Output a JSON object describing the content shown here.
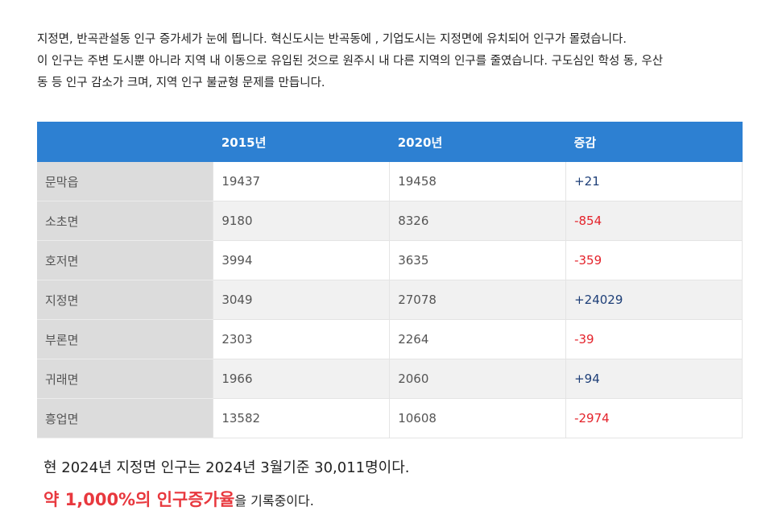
{
  "intro": [
    "지정면, 반곡관설동 인구 증가세가 눈에 띕니다. 혁신도시는 반곡동에 , 기업도시는 지정면에 유치되어 인구가 몰렸습니다.",
    "이 인구는 주변 도시뿐 아니라 지역 내 이동으로 유입된 것으로 원주시 내 다른 지역의 인구를 줄였습니다. 구도심인 학성 동, 우산",
    "동 등 인구 감소가 크며, 지역 인구 불균형 문제를 만듭니다."
  ],
  "table": {
    "header": [
      "",
      "2015년",
      "2020년",
      "증감"
    ],
    "rows": [
      [
        "문막읍",
        19437,
        19458,
        "+21"
      ],
      [
        "소초면",
        9180,
        8326,
        "-854"
      ],
      [
        "호저면",
        3994,
        3635,
        "-359"
      ],
      [
        "지정면",
        3049,
        27078,
        "+24029"
      ],
      [
        "부론면",
        2303,
        2264,
        "-39"
      ],
      [
        "귀래면",
        1966,
        2060,
        "+94"
      ],
      [
        "흥업면",
        13582,
        10608,
        "-2974"
      ]
    ]
  },
  "footer": {
    "line1": "현 2024년 지정면 인구는 2024년 3월기준 30,011명이다.",
    "highlight": "약 1,000%의 인구증가율",
    "rest": "을 기록중이다."
  }
}
